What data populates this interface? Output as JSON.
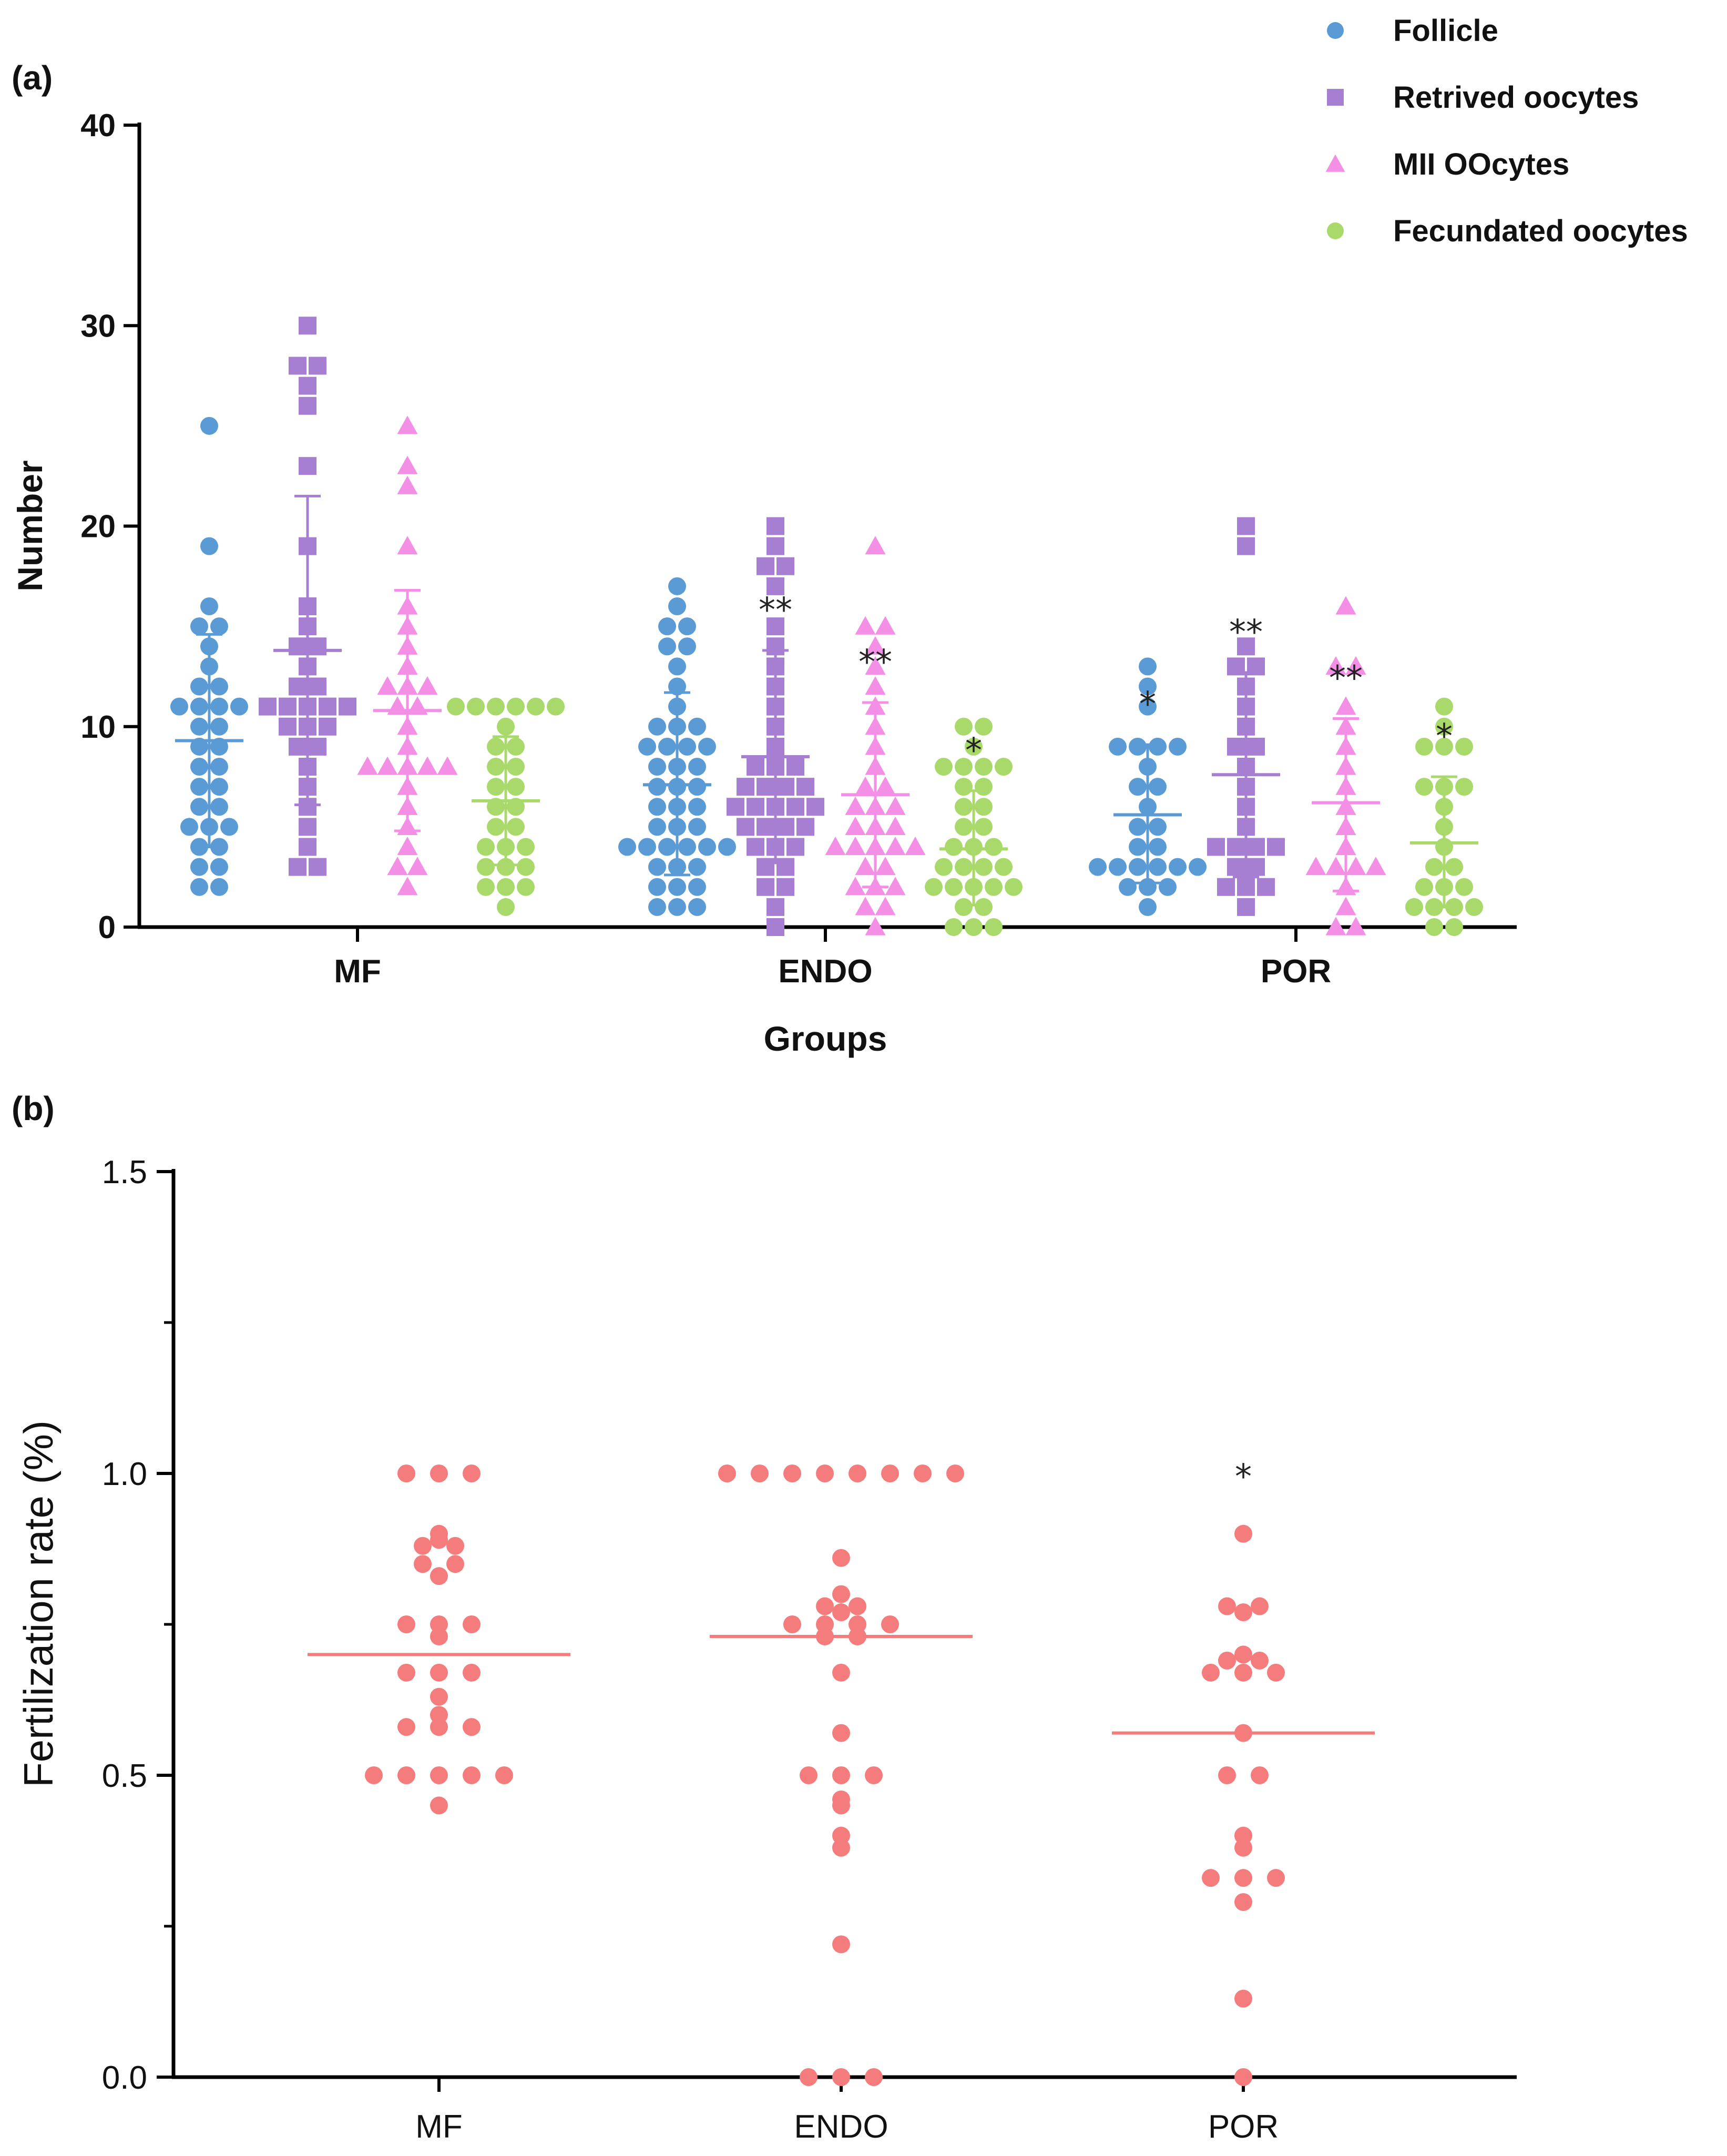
{
  "chart_data": [
    {
      "panel": "(a)",
      "type": "scatter",
      "ylabel": "Number",
      "xlabel": "Groups",
      "ylim": [
        0,
        40
      ],
      "yticks": [
        0,
        10,
        20,
        30,
        40
      ],
      "categories": [
        "MF",
        "ENDO",
        "POR"
      ],
      "legend_position": "top-right",
      "series": [
        {
          "name": "Follicle",
          "color": "#5b9bd5",
          "marker": "circle",
          "groups": [
            {
              "category": "MF",
              "values": [
                25,
                19,
                16,
                15,
                15,
                14,
                13,
                12,
                12,
                11,
                11,
                11,
                11,
                10,
                10,
                9,
                9,
                8,
                8,
                7,
                7,
                6,
                6,
                5,
                5,
                5,
                4,
                4,
                3,
                3,
                2,
                2
              ],
              "mean": 9.3,
              "sd_low": 4.0,
              "sd_high": 14.6,
              "sig": ""
            },
            {
              "category": "ENDO",
              "values": [
                17,
                16,
                15,
                15,
                14,
                14,
                13,
                12,
                11,
                10,
                10,
                10,
                9,
                9,
                9,
                9,
                8,
                8,
                8,
                7,
                7,
                7,
                6,
                6,
                6,
                5,
                5,
                5,
                4,
                4,
                4,
                4,
                4,
                4,
                3,
                3,
                3,
                2,
                2,
                2,
                1,
                1,
                1
              ],
              "mean": 7.1,
              "sd_low": 2.6,
              "sd_high": 11.7,
              "sig": ""
            },
            {
              "category": "POR",
              "values": [
                13,
                12,
                11,
                9,
                9,
                9,
                9,
                8,
                7,
                7,
                6,
                5,
                5,
                4,
                4,
                3,
                3,
                3,
                3,
                3,
                3,
                2,
                2,
                2,
                1
              ],
              "mean": 5.6,
              "sd_low": 2.2,
              "sd_high": 9.1,
              "sig": "*"
            }
          ]
        },
        {
          "name": "Retrived oocytes",
          "color": "#a67fd3",
          "marker": "square",
          "groups": [
            {
              "category": "MF",
              "values": [
                30,
                28,
                28,
                27,
                26,
                23,
                19,
                16,
                15,
                14,
                14,
                13,
                12,
                12,
                11,
                11,
                11,
                11,
                11,
                10,
                10,
                10,
                9,
                9,
                8,
                7,
                6,
                5,
                4,
                3,
                3
              ],
              "mean": 13.8,
              "sd_low": 6.1,
              "sd_high": 21.5,
              "sig": ""
            },
            {
              "category": "ENDO",
              "values": [
                20,
                19,
                18,
                18,
                17,
                15,
                14,
                13,
                12,
                11,
                10,
                9,
                8,
                8,
                8,
                7,
                7,
                7,
                7,
                6,
                6,
                6,
                6,
                6,
                5,
                5,
                5,
                5,
                4,
                4,
                4,
                3,
                3,
                2,
                2,
                1,
                0
              ],
              "mean": 8.5,
              "sd_low": 3.2,
              "sd_high": 13.8,
              "sig": "**"
            },
            {
              "category": "POR",
              "values": [
                20,
                19,
                14,
                13,
                13,
                12,
                11,
                10,
                9,
                9,
                8,
                7,
                6,
                5,
                4,
                4,
                4,
                4,
                3,
                3,
                2,
                2,
                2,
                1
              ],
              "mean": 7.6,
              "sd_low": 2.5,
              "sd_high": 12.7,
              "sig": "**"
            }
          ]
        },
        {
          "name": "MII OOcytes",
          "color": "#f48fe6",
          "marker": "triangle",
          "groups": [
            {
              "category": "MF",
              "values": [
                25,
                23,
                22,
                19,
                16,
                15,
                14,
                13,
                12,
                12,
                12,
                11,
                11,
                10,
                9,
                8,
                8,
                8,
                8,
                8,
                7,
                6,
                5,
                4,
                3,
                3,
                2
              ],
              "mean": 10.8,
              "sd_low": 4.8,
              "sd_high": 16.8,
              "sig": ""
            },
            {
              "category": "ENDO",
              "values": [
                19,
                15,
                15,
                14,
                13,
                12,
                11,
                10,
                9,
                8,
                7,
                7,
                6,
                6,
                6,
                5,
                5,
                5,
                4,
                4,
                4,
                4,
                4,
                3,
                3,
                2,
                2,
                2,
                1,
                1,
                0
              ],
              "mean": 6.6,
              "sd_low": 2.0,
              "sd_high": 11.2,
              "sig": "**"
            },
            {
              "category": "POR",
              "values": [
                16,
                13,
                13,
                11,
                10,
                9,
                8,
                7,
                6,
                5,
                4,
                3,
                3,
                3,
                3,
                2,
                1,
                0,
                0
              ],
              "mean": 6.2,
              "sd_low": 1.8,
              "sd_high": 10.4,
              "sig": "**"
            }
          ]
        },
        {
          "name": "Fecundated oocytes",
          "color": "#a9d96a",
          "marker": "circle",
          "groups": [
            {
              "category": "MF",
              "values": [
                11,
                11,
                11,
                11,
                11,
                11,
                10,
                9,
                9,
                8,
                8,
                7,
                7,
                6,
                6,
                5,
                5,
                4,
                4,
                4,
                3,
                3,
                3,
                2,
                2,
                2,
                1
              ],
              "mean": 6.3,
              "sd_low": 3.1,
              "sd_high": 9.5,
              "sig": ""
            },
            {
              "category": "ENDO",
              "values": [
                10,
                10,
                9,
                8,
                8,
                8,
                8,
                7,
                7,
                6,
                6,
                5,
                5,
                4,
                4,
                4,
                3,
                3,
                3,
                3,
                2,
                2,
                2,
                2,
                2,
                1,
                1,
                0,
                0,
                0
              ],
              "mean": 3.9,
              "sd_low": 1.1,
              "sd_high": 6.8,
              "sig": "*"
            },
            {
              "category": "POR",
              "values": [
                11,
                10,
                9,
                9,
                9,
                7,
                7,
                7,
                6,
                5,
                4,
                3,
                3,
                2,
                2,
                2,
                1,
                1,
                1,
                1,
                0,
                0
              ],
              "mean": 4.2,
              "sd_low": 1.0,
              "sd_high": 7.5,
              "sig": "*"
            }
          ]
        }
      ]
    },
    {
      "panel": "(b)",
      "type": "scatter",
      "ylabel": "Fertilization rate (%)",
      "xlabel": "",
      "ylim": [
        0,
        1.5
      ],
      "yticks": [
        "0.0",
        "0.5",
        "1.0",
        "1.5"
      ],
      "categories": [
        "MF",
        "ENDO",
        "POR"
      ],
      "color": "#f47c7c",
      "groups": [
        {
          "category": "MF",
          "values": [
            1.0,
            1.0,
            1.0,
            0.9,
            0.89,
            0.88,
            0.88,
            0.85,
            0.85,
            0.83,
            0.75,
            0.75,
            0.75,
            0.73,
            0.67,
            0.67,
            0.67,
            0.63,
            0.6,
            0.58,
            0.58,
            0.58,
            0.5,
            0.5,
            0.5,
            0.5,
            0.5,
            0.45
          ],
          "median": 0.7,
          "sig": ""
        },
        {
          "category": "ENDO",
          "values": [
            1.0,
            1.0,
            1.0,
            1.0,
            1.0,
            1.0,
            1.0,
            1.0,
            0.86,
            0.8,
            0.78,
            0.78,
            0.77,
            0.75,
            0.75,
            0.75,
            0.75,
            0.73,
            0.73,
            0.67,
            0.57,
            0.5,
            0.5,
            0.5,
            0.46,
            0.45,
            0.4,
            0.38,
            0.22,
            0.0,
            0.0,
            0.0
          ],
          "median": 0.73,
          "sig": ""
        },
        {
          "category": "POR",
          "values": [
            0.9,
            0.78,
            0.78,
            0.77,
            0.7,
            0.69,
            0.69,
            0.67,
            0.67,
            0.67,
            0.57,
            0.5,
            0.5,
            0.4,
            0.38,
            0.33,
            0.33,
            0.33,
            0.29,
            0.13,
            0.0
          ],
          "median": 0.57,
          "sig": "*"
        }
      ]
    }
  ]
}
